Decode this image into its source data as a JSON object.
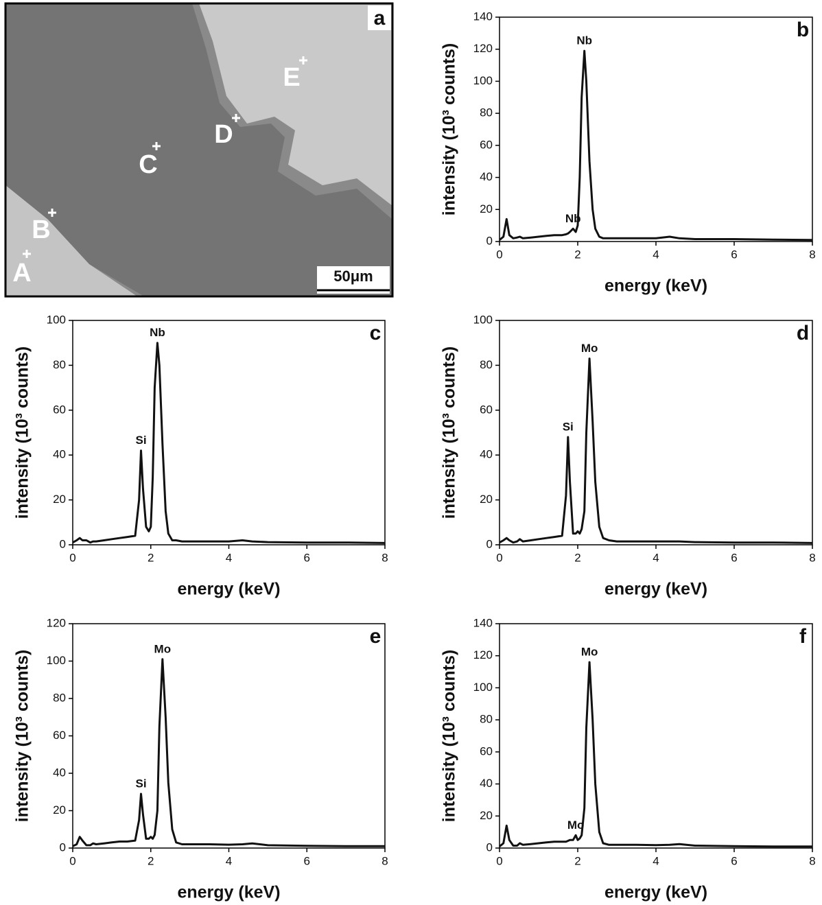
{
  "micrograph": {
    "panel_label": "a",
    "points": [
      "A",
      "B",
      "C",
      "D",
      "E"
    ],
    "scale_bar": "50μm"
  },
  "chart_data": [
    {
      "type": "line",
      "panel_label": "b",
      "xlabel": "energy (keV)",
      "ylabel": "intensity (10³ counts)",
      "color": "#111111",
      "x": [
        0,
        0.1,
        0.18,
        0.25,
        0.35,
        0.45,
        0.52,
        0.6,
        0.8,
        1.0,
        1.2,
        1.4,
        1.6,
        1.7,
        1.75,
        1.8,
        1.88,
        1.95,
        2.0,
        2.05,
        2.1,
        2.17,
        2.22,
        2.3,
        2.38,
        2.45,
        2.55,
        2.65,
        2.8,
        3.0,
        3.5,
        4.0,
        4.35,
        4.6,
        5.0,
        6.0,
        7.0,
        8.0
      ],
      "values": [
        1,
        3,
        14,
        4,
        2,
        2.5,
        3,
        2,
        2.5,
        3,
        3.5,
        4,
        4,
        4.5,
        5,
        6,
        8,
        6,
        10,
        40,
        90,
        119,
        100,
        50,
        20,
        8,
        3,
        2,
        2,
        2,
        2,
        2,
        3,
        2,
        1.5,
        1.5,
        1.2,
        1
      ],
      "annotations": [
        {
          "text": "Nb",
          "x": 2.17
        },
        {
          "text": "Nb",
          "x": 1.88
        }
      ],
      "xlim": [
        0,
        8
      ],
      "xticks": [
        0,
        2,
        4,
        6,
        8
      ],
      "ylim": [
        0,
        140
      ],
      "yticks": [
        0,
        20,
        40,
        60,
        80,
        100,
        120,
        140
      ]
    },
    {
      "type": "line",
      "panel_label": "c",
      "xlabel": "energy (keV)",
      "ylabel": "intensity (10³ counts)",
      "color": "#111111",
      "x": [
        0,
        0.1,
        0.18,
        0.25,
        0.35,
        0.45,
        0.52,
        0.6,
        0.8,
        1.0,
        1.2,
        1.4,
        1.6,
        1.7,
        1.75,
        1.8,
        1.88,
        1.95,
        2.0,
        2.05,
        2.1,
        2.17,
        2.22,
        2.3,
        2.38,
        2.45,
        2.55,
        2.65,
        2.8,
        3.0,
        3.5,
        4.0,
        4.35,
        4.6,
        5.0,
        6.0,
        7.0,
        8.0
      ],
      "values": [
        1,
        2,
        3,
        2,
        2,
        1,
        1.5,
        1.5,
        2,
        2.5,
        3,
        3.5,
        4,
        20,
        42,
        25,
        8,
        6,
        8,
        30,
        70,
        90,
        80,
        45,
        15,
        5,
        2,
        2,
        1.5,
        1.5,
        1.5,
        1.5,
        2,
        1.5,
        1.2,
        1,
        1,
        0.8
      ],
      "annotations": [
        {
          "text": "Si",
          "x": 1.75
        },
        {
          "text": "Nb",
          "x": 2.17
        }
      ],
      "xlim": [
        0,
        8
      ],
      "xticks": [
        0,
        2,
        4,
        6,
        8
      ],
      "ylim": [
        0,
        100
      ],
      "yticks": [
        0,
        20,
        40,
        60,
        80,
        100
      ]
    },
    {
      "type": "line",
      "panel_label": "d",
      "xlabel": "energy (keV)",
      "ylabel": "intensity (10³ counts)",
      "color": "#111111",
      "x": [
        0,
        0.1,
        0.18,
        0.25,
        0.35,
        0.45,
        0.52,
        0.6,
        0.8,
        1.0,
        1.2,
        1.4,
        1.6,
        1.7,
        1.75,
        1.8,
        1.88,
        1.95,
        2.0,
        2.05,
        2.1,
        2.17,
        2.22,
        2.3,
        2.38,
        2.45,
        2.55,
        2.65,
        2.8,
        3.0,
        3.5,
        4.0,
        4.35,
        4.6,
        5.0,
        6.0,
        7.0,
        8.0
      ],
      "values": [
        1,
        2,
        3,
        2,
        1,
        1.5,
        2.5,
        1.5,
        2,
        2.5,
        3,
        3.5,
        4,
        22,
        48,
        28,
        5,
        5,
        6,
        5,
        7,
        15,
        50,
        83,
        55,
        28,
        8,
        3,
        2,
        1.5,
        1.5,
        1.5,
        1.5,
        1.5,
        1.2,
        1,
        1,
        0.8
      ],
      "annotations": [
        {
          "text": "Si",
          "x": 1.75
        },
        {
          "text": "Mo",
          "x": 2.3
        }
      ],
      "xlim": [
        0,
        8
      ],
      "xticks": [
        0,
        2,
        4,
        6,
        8
      ],
      "ylim": [
        0,
        100
      ],
      "yticks": [
        0,
        20,
        40,
        60,
        80,
        100
      ]
    },
    {
      "type": "line",
      "panel_label": "e",
      "xlabel": "energy (keV)",
      "ylabel": "intensity (10³ counts)",
      "color": "#111111",
      "x": [
        0,
        0.1,
        0.18,
        0.25,
        0.35,
        0.45,
        0.52,
        0.6,
        0.8,
        1.0,
        1.2,
        1.4,
        1.6,
        1.7,
        1.75,
        1.8,
        1.88,
        1.95,
        2.0,
        2.05,
        2.1,
        2.17,
        2.22,
        2.3,
        2.38,
        2.45,
        2.55,
        2.65,
        2.8,
        3.0,
        3.5,
        4.0,
        4.35,
        4.6,
        5.0,
        6.0,
        7.0,
        8.0
      ],
      "values": [
        1,
        2,
        6,
        4,
        1.5,
        1.5,
        2.5,
        2,
        2.5,
        3,
        3.5,
        3.5,
        4,
        15,
        29,
        18,
        5,
        5,
        6,
        5,
        7,
        20,
        65,
        101,
        70,
        35,
        10,
        3,
        2,
        2,
        2,
        1.8,
        2,
        2.5,
        1.5,
        1.2,
        1,
        1
      ],
      "annotations": [
        {
          "text": "Si",
          "x": 1.75
        },
        {
          "text": "Mo",
          "x": 2.3
        }
      ],
      "xlim": [
        0,
        8
      ],
      "xticks": [
        0,
        2,
        4,
        6,
        8
      ],
      "ylim": [
        0,
        120
      ],
      "yticks": [
        0,
        20,
        40,
        60,
        80,
        100,
        120
      ]
    },
    {
      "type": "line",
      "panel_label": "f",
      "xlabel": "energy (keV)",
      "ylabel": "intensity (10³ counts)",
      "color": "#111111",
      "x": [
        0,
        0.1,
        0.18,
        0.25,
        0.35,
        0.45,
        0.52,
        0.6,
        0.8,
        1.0,
        1.2,
        1.4,
        1.6,
        1.7,
        1.75,
        1.8,
        1.88,
        1.95,
        2.0,
        2.05,
        2.1,
        2.17,
        2.22,
        2.3,
        2.38,
        2.45,
        2.55,
        2.65,
        2.8,
        3.0,
        3.5,
        4.0,
        4.35,
        4.6,
        5.0,
        6.0,
        7.0,
        8.0
      ],
      "values": [
        1,
        3,
        14,
        5,
        1.5,
        1.5,
        3,
        2,
        2.5,
        3,
        3.5,
        4,
        4,
        4,
        4.5,
        5,
        5,
        8,
        5,
        6,
        8,
        25,
        75,
        116,
        80,
        40,
        10,
        3,
        2,
        2,
        2,
        1.8,
        2,
        2.5,
        1.5,
        1.2,
        1,
        1
      ],
      "annotations": [
        {
          "text": "Mo",
          "x": 2.3
        },
        {
          "text": "Mo",
          "x": 1.95
        }
      ],
      "xlim": [
        0,
        8
      ],
      "xticks": [
        0,
        2,
        4,
        6,
        8
      ],
      "ylim": [
        0,
        140
      ],
      "yticks": [
        0,
        20,
        40,
        60,
        80,
        100,
        120,
        140
      ]
    }
  ]
}
